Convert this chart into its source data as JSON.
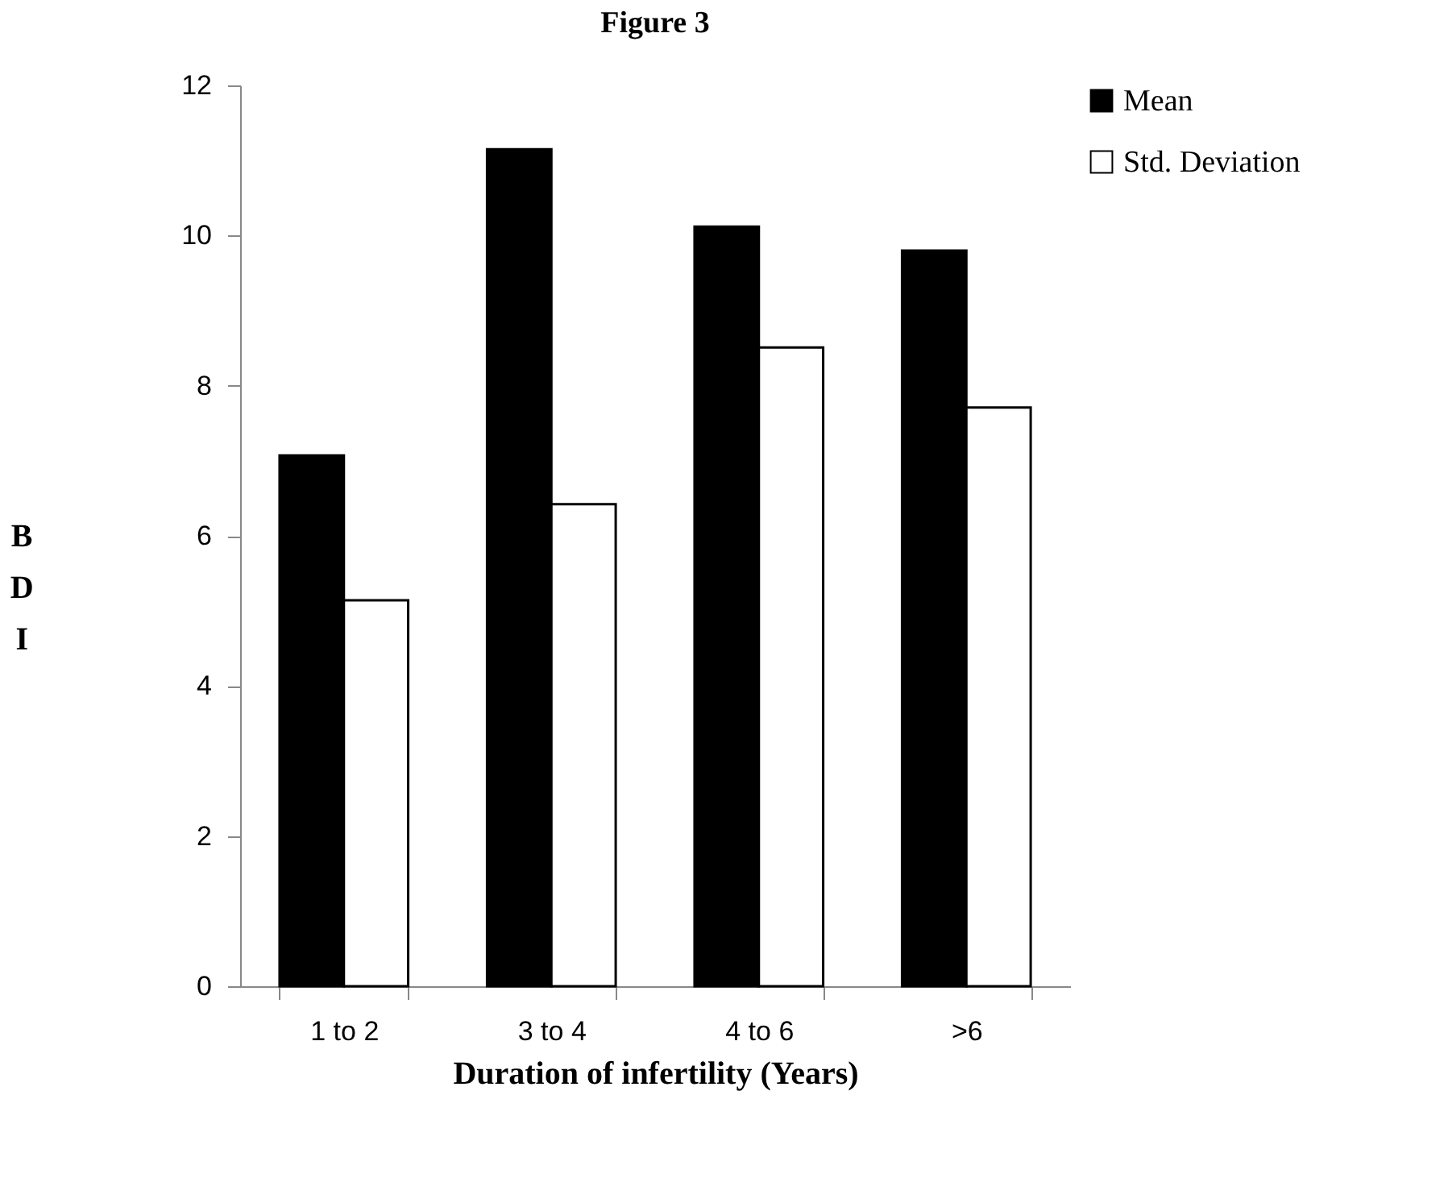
{
  "chart_data": {
    "type": "bar",
    "title": "Figure 3",
    "xlabel": "Duration of infertility (Years)",
    "ylabel": "BDI",
    "categories": [
      "1 to 2",
      "3 to 4",
      "4 to 6",
      ">6"
    ],
    "series": [
      {
        "name": "Mean",
        "color": "#000000",
        "values": [
          7.07,
          11.15,
          10.12,
          9.8
        ]
      },
      {
        "name": "Std. Deviation",
        "color": "#ffffff",
        "values": [
          5.14,
          6.42,
          8.51,
          7.71
        ]
      }
    ],
    "ylim": [
      0,
      12
    ],
    "yticks": [
      0,
      2,
      4,
      6,
      8,
      10,
      12
    ],
    "grid": false,
    "legend": "right"
  }
}
